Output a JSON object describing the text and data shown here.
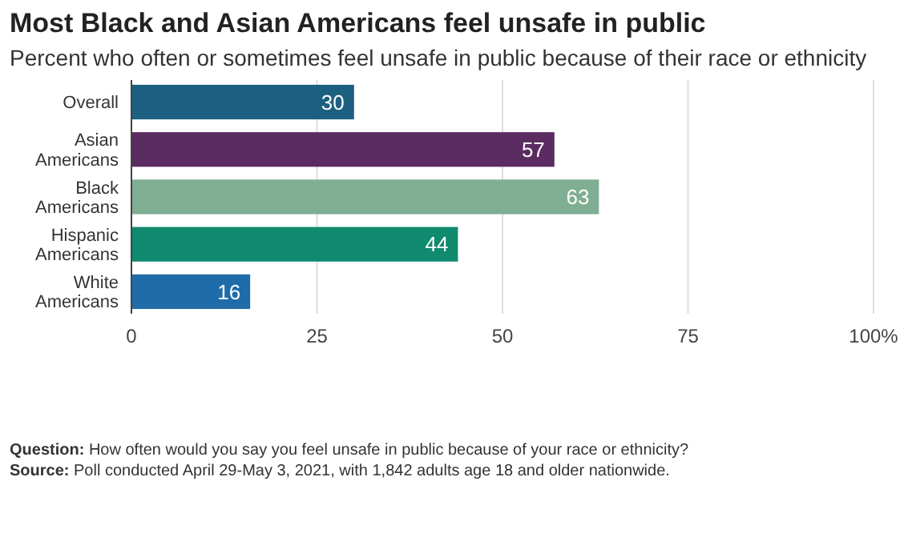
{
  "chart_data": {
    "type": "bar",
    "orientation": "horizontal",
    "title": "Most Black and Asian Americans feel unsafe in public",
    "subtitle": "Percent who often or sometimes feel unsafe in public because of their race or ethnicity",
    "categories": [
      "Overall",
      "Asian Americans",
      "Black Americans",
      "Hispanic Americans",
      "White Americans"
    ],
    "values": [
      30,
      57,
      63,
      44,
      16
    ],
    "colors": [
      "#1d5f80",
      "#5b2c61",
      "#7fae93",
      "#0f8a6f",
      "#1f6ca8"
    ],
    "xlim": [
      0,
      100
    ],
    "xticks": [
      0,
      25,
      50,
      75,
      {
        "value": 100,
        "label": "100%"
      }
    ],
    "grid": "x",
    "data_labels": true,
    "annotations": [
      "Question: How often would you say you feel unsafe in public because of your race or ethnicity?",
      "Source: Poll conducted April 29-May 3, 2021, with 1,842 adults age 18 and older nationwide."
    ]
  }
}
